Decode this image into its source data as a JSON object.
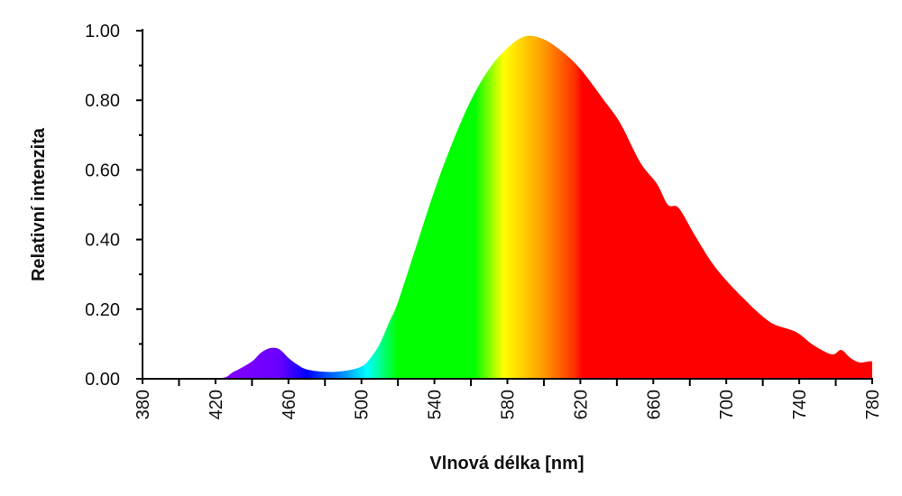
{
  "chart_data": {
    "type": "area",
    "title": "",
    "xlabel": "Vlnová délka [nm]",
    "ylabel": "Relativní intenzita",
    "xlim": [
      380,
      780
    ],
    "ylim": [
      0,
      1
    ],
    "grid": false,
    "x_ticks": [
      "380",
      "420",
      "460",
      "500",
      "540",
      "580",
      "620",
      "660",
      "700",
      "740",
      "780"
    ],
    "y_ticks": [
      "0.00",
      "0.20",
      "0.40",
      "0.60",
      "0.80",
      "1.00"
    ],
    "x": [
      380,
      420,
      430,
      440,
      445,
      450,
      455,
      460,
      465,
      470,
      480,
      490,
      500,
      505,
      510,
      515,
      520,
      530,
      540,
      550,
      560,
      570,
      580,
      590,
      600,
      610,
      620,
      633,
      642,
      653,
      662,
      668,
      674,
      683,
      694,
      709,
      724,
      738,
      748,
      758,
      763,
      768,
      773,
      778,
      780
    ],
    "y": [
      0,
      0,
      0.02,
      0.05,
      0.075,
      0.088,
      0.085,
      0.06,
      0.04,
      0.027,
      0.02,
      0.022,
      0.035,
      0.06,
      0.1,
      0.16,
      0.22,
      0.38,
      0.54,
      0.68,
      0.8,
      0.89,
      0.95,
      0.984,
      0.975,
      0.94,
      0.89,
      0.8,
      0.733,
      0.62,
      0.56,
      0.5,
      0.49,
      0.41,
      0.32,
      0.233,
      0.163,
      0.135,
      0.096,
      0.07,
      0.083,
      0.06,
      0.047,
      0.05,
      0.05
    ],
    "spectrum_colors": [
      {
        "nm": 420,
        "color": "#8a00ff"
      },
      {
        "nm": 455,
        "color": "#6a00ff"
      },
      {
        "nm": 470,
        "color": "#0000ff"
      },
      {
        "nm": 490,
        "color": "#0090ff"
      },
      {
        "nm": 503,
        "color": "#00ffff"
      },
      {
        "nm": 520,
        "color": "#00ff00"
      },
      {
        "nm": 562,
        "color": "#00ff00"
      },
      {
        "nm": 578,
        "color": "#ffff00"
      },
      {
        "nm": 600,
        "color": "#ff9a00"
      },
      {
        "nm": 617,
        "color": "#ff3000"
      },
      {
        "nm": 621,
        "color": "#ff0000"
      },
      {
        "nm": 780,
        "color": "#ff0000"
      }
    ]
  }
}
